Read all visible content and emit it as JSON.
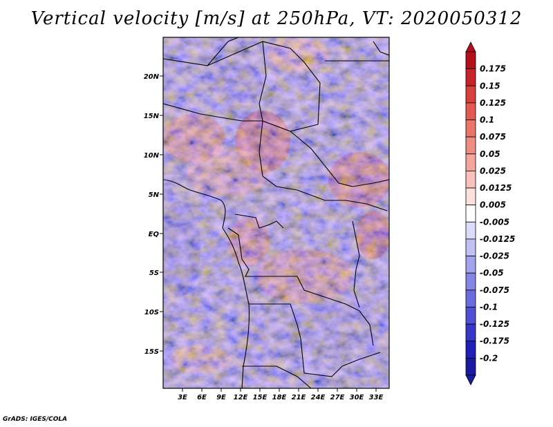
{
  "title": "Vertical velocity [m/s] at 250hPa, VT: 2020050312",
  "credit": "GrADS: IGES/COLA",
  "lat_labels": [
    "20N",
    "15N",
    "10N",
    "5N",
    "EQ",
    "5S",
    "10S",
    "15S"
  ],
  "lon_labels": [
    "3E",
    "6E",
    "9E",
    "12E",
    "15E",
    "18E",
    "21E",
    "24E",
    "27E",
    "30E",
    "33E"
  ],
  "colorbar": {
    "labels": [
      "0.175",
      "0.15",
      "0.125",
      "0.1",
      "0.075",
      "0.05",
      "0.025",
      "0.0125",
      "0.005",
      "-0.005",
      "-0.0125",
      "-0.025",
      "-0.05",
      "-0.075",
      "-0.1",
      "-0.125",
      "-0.175",
      "-0.2"
    ],
    "colors": [
      "#b3101b",
      "#c8232b",
      "#d9403c",
      "#e35a52",
      "#eb7469",
      "#f08d83",
      "#f4a69d",
      "#f8c2bb",
      "#fce0dc",
      "#ffffff",
      "#dcdcfa",
      "#c0c0f5",
      "#a2a2ef",
      "#8585e8",
      "#6b6be0",
      "#5050d6",
      "#3636c8",
      "#2020b8",
      "#1a1aa0"
    ]
  },
  "chart_data": {
    "type": "heatmap",
    "title": "Vertical velocity [m/s] at 250hPa, VT: 2020050312",
    "variable": "Vertical velocity",
    "units": "m/s",
    "level": "250hPa",
    "valid_time": "2020050312",
    "lat_range": [
      -20,
      25
    ],
    "lon_range": [
      0,
      35
    ],
    "contour_levels": [
      -0.2,
      -0.175,
      -0.125,
      -0.1,
      -0.075,
      -0.05,
      -0.025,
      -0.0125,
      -0.005,
      0.005,
      0.0125,
      0.025,
      0.05,
      0.075,
      0.1,
      0.125,
      0.15,
      0.175
    ]
  }
}
